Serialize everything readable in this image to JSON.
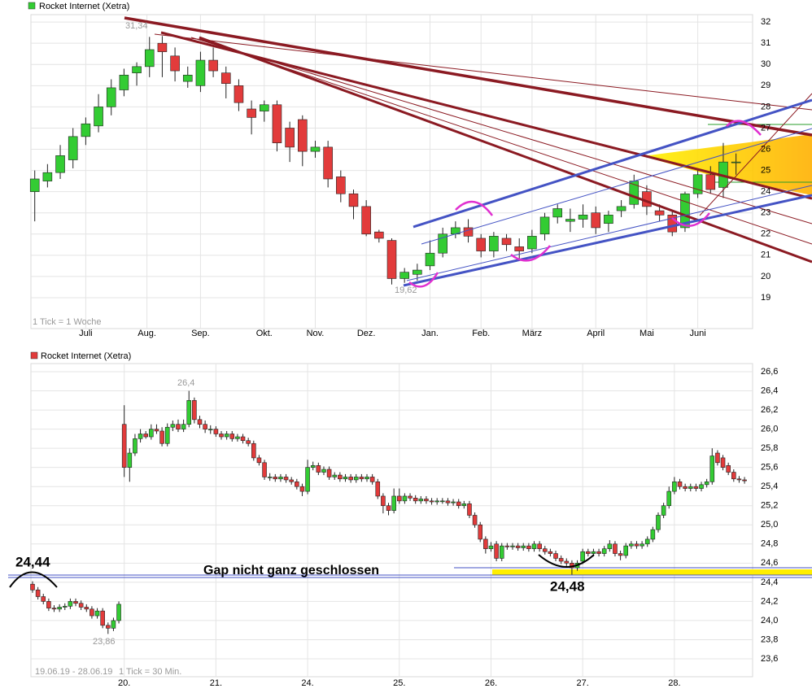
{
  "chart_data": [
    {
      "type": "candlestick",
      "title": "Rocket Internet (Xetra)",
      "note": "1 Tick = 1 Woche",
      "annotations": [
        "31,34",
        "19,62"
      ],
      "up_color": "#33cc33",
      "down_color": "#e23b3b",
      "grid": true,
      "ylim": [
        17.54,
        32.35
      ],
      "yticks": [
        19,
        20,
        21,
        22,
        23,
        24,
        25,
        26,
        27,
        28,
        29,
        30,
        31,
        32
      ],
      "xlim": [
        -0.3,
        56.3
      ],
      "xticks": [
        {
          "value": 4,
          "label": "Juli"
        },
        {
          "value": 8.8,
          "label": "Aug."
        },
        {
          "value": 13,
          "label": "Sep."
        },
        {
          "value": 18,
          "label": "Okt."
        },
        {
          "value": 22,
          "label": "Nov."
        },
        {
          "value": 26,
          "label": "Dez."
        },
        {
          "value": 31,
          "label": "Jan."
        },
        {
          "value": 35,
          "label": "Feb."
        },
        {
          "value": 39,
          "label": "März"
        },
        {
          "value": 44,
          "label": "April"
        },
        {
          "value": 48,
          "label": "Mai"
        },
        {
          "value": 52,
          "label": "Juni"
        }
      ],
      "open": [
        24.0,
        24.5,
        24.9,
        25.5,
        26.6,
        27.1,
        28.0,
        28.8,
        29.6,
        29.9,
        31.0,
        30.4,
        29.2,
        29.0,
        30.2,
        29.6,
        29.0,
        27.9,
        27.8,
        28.1,
        27.0,
        27.4,
        25.9,
        26.1,
        24.7,
        23.9,
        23.3,
        22.1,
        21.7,
        19.9,
        20.1,
        20.5,
        21.1,
        22.0,
        22.3,
        21.8,
        21.2,
        21.8,
        21.4,
        21.3,
        22.0,
        22.8,
        22.6,
        22.7,
        23.0,
        22.5,
        23.1,
        23.4,
        24.0,
        23.1,
        22.9,
        22.3,
        23.9,
        24.8,
        24.2,
        25.4
      ],
      "close": [
        24.6,
        24.9,
        25.7,
        26.6,
        27.2,
        28.0,
        28.9,
        29.5,
        29.9,
        30.7,
        30.6,
        29.7,
        29.5,
        30.2,
        29.7,
        29.1,
        28.2,
        27.5,
        28.1,
        26.3,
        26.1,
        25.9,
        26.1,
        24.6,
        23.9,
        23.3,
        22.0,
        21.8,
        19.9,
        20.2,
        20.3,
        21.1,
        22.0,
        22.3,
        21.9,
        21.2,
        21.9,
        21.5,
        21.2,
        21.9,
        22.8,
        23.2,
        22.7,
        22.9,
        22.3,
        22.9,
        23.3,
        24.5,
        23.3,
        22.9,
        22.1,
        23.9,
        24.8,
        24.1,
        25.4,
        25.4
      ],
      "high": [
        25.0,
        25.3,
        26.2,
        27.0,
        27.5,
        28.6,
        29.3,
        29.8,
        30.1,
        31.3,
        31.34,
        30.8,
        29.9,
        30.6,
        30.8,
        29.9,
        29.3,
        28.3,
        28.3,
        28.3,
        27.3,
        27.6,
        26.4,
        26.4,
        25.0,
        24.1,
        23.6,
        22.2,
        21.8,
        20.4,
        20.6,
        21.7,
        22.3,
        22.6,
        22.7,
        22.0,
        22.1,
        22.0,
        21.8,
        22.2,
        23.0,
        23.4,
        23.2,
        23.4,
        23.3,
        23.1,
        23.6,
        24.8,
        24.3,
        23.4,
        23.1,
        24.0,
        25.0,
        25.2,
        26.3,
        25.8
      ],
      "low": [
        22.6,
        24.2,
        24.6,
        25.1,
        26.2,
        26.8,
        27.6,
        28.5,
        29.0,
        29.4,
        29.4,
        29.2,
        28.9,
        28.7,
        29.4,
        28.4,
        27.8,
        26.7,
        27.3,
        25.9,
        25.4,
        25.2,
        25.6,
        24.2,
        23.5,
        22.7,
        21.9,
        21.6,
        19.62,
        19.7,
        19.8,
        20.3,
        20.9,
        21.8,
        21.6,
        20.9,
        20.9,
        21.2,
        20.8,
        21.1,
        21.7,
        22.5,
        22.1,
        22.3,
        22.0,
        22.1,
        22.8,
        23.2,
        22.9,
        22.6,
        21.9,
        22.1,
        23.7,
        23.9,
        23.7,
        24.8
      ]
    },
    {
      "type": "candlestick",
      "title": "Rocket Internet (Xetra)",
      "note": "1 Tick = 30 Min.",
      "date_range": "19.06.19 - 28.06.19",
      "annotations": [
        "26,4",
        "23,86",
        "24,44",
        "24,48",
        "Gap nicht ganz geschlossen"
      ],
      "up_color": "#33cc33",
      "down_color": "#e23b3b",
      "grid": true,
      "ylim": [
        23.413,
        26.685
      ],
      "yticks": [
        {
          "value": 23.6,
          "label": "23,6"
        },
        {
          "value": 23.8,
          "label": "23,8"
        },
        {
          "value": 24.0,
          "label": "24,0"
        },
        {
          "value": 24.2,
          "label": "24,2"
        },
        {
          "value": 24.4,
          "label": "24,4"
        },
        {
          "value": 24.6,
          "label": "24,6"
        },
        {
          "value": 24.8,
          "label": "24,8"
        },
        {
          "value": 25.0,
          "label": "25,0"
        },
        {
          "value": 25.2,
          "label": "25,2"
        },
        {
          "value": 25.4,
          "label": "25,4"
        },
        {
          "value": 25.6,
          "label": "25,6"
        },
        {
          "value": 25.8,
          "label": "25,8"
        },
        {
          "value": 26.0,
          "label": "26,0"
        },
        {
          "value": 26.2,
          "label": "26,2"
        },
        {
          "value": 26.4,
          "label": "26,4"
        },
        {
          "value": 26.6,
          "label": "26,6"
        }
      ],
      "xlim": [
        -0.3,
        133.5
      ],
      "xticks": [
        {
          "value": 17,
          "label": "20."
        },
        {
          "value": 34,
          "label": "21."
        },
        {
          "value": 51,
          "label": "24."
        },
        {
          "value": 68,
          "label": "25."
        },
        {
          "value": 85,
          "label": "26."
        },
        {
          "value": 102,
          "label": "27."
        },
        {
          "value": 119,
          "label": "28."
        }
      ],
      "open": [
        24.38,
        24.32,
        24.25,
        24.2,
        24.13,
        24.12,
        24.14,
        24.15,
        24.2,
        24.18,
        24.14,
        24.12,
        24.05,
        24.1,
        23.95,
        23.92,
        24.0,
        26.05,
        25.6,
        25.75,
        25.9,
        25.95,
        25.92,
        26.0,
        25.98,
        25.85,
        26.02,
        26.05,
        26.0,
        26.05,
        26.3,
        26.1,
        26.05,
        26.0,
        26.0,
        25.95,
        25.92,
        25.95,
        25.9,
        25.92,
        25.88,
        25.85,
        25.7,
        25.65,
        25.5,
        25.5,
        25.48,
        25.5,
        25.47,
        25.45,
        25.4,
        25.35,
        25.6,
        25.62,
        25.55,
        25.58,
        25.5,
        25.52,
        25.48,
        25.5,
        25.47,
        25.5,
        25.48,
        25.5,
        25.45,
        25.3,
        25.2,
        25.15,
        25.3,
        25.25,
        25.3,
        25.28,
        25.25,
        25.27,
        25.25,
        25.24,
        25.25,
        25.25,
        25.23,
        25.24,
        25.2,
        25.22,
        25.1,
        25.0,
        24.85,
        24.75,
        24.8,
        24.65,
        24.78,
        24.77,
        24.78,
        24.76,
        24.78,
        24.75,
        24.8,
        24.75,
        24.72,
        24.7,
        24.65,
        24.62,
        24.6,
        24.55,
        24.62,
        24.72,
        24.7,
        24.72,
        24.7,
        24.75,
        24.8,
        24.7,
        24.68,
        24.78,
        24.8,
        24.78,
        24.8,
        24.85,
        24.95,
        25.1,
        25.2,
        25.35,
        25.45,
        25.4,
        25.38,
        25.4,
        25.38,
        25.42,
        25.45,
        25.75,
        25.7,
        25.62,
        25.55,
        25.48,
        25.47
      ],
      "close": [
        24.32,
        24.25,
        24.2,
        24.13,
        24.12,
        24.14,
        24.15,
        24.2,
        24.18,
        24.14,
        24.12,
        24.05,
        24.1,
        23.95,
        23.92,
        24.0,
        24.17,
        25.6,
        25.75,
        25.9,
        25.95,
        25.92,
        26.0,
        25.98,
        25.85,
        26.02,
        26.05,
        26.0,
        26.05,
        26.3,
        26.1,
        26.05,
        26.0,
        26.0,
        25.95,
        25.92,
        25.95,
        25.9,
        25.92,
        25.88,
        25.85,
        25.7,
        25.65,
        25.5,
        25.5,
        25.48,
        25.5,
        25.47,
        25.45,
        25.4,
        25.35,
        25.6,
        25.62,
        25.55,
        25.58,
        25.5,
        25.52,
        25.48,
        25.5,
        25.47,
        25.5,
        25.48,
        25.5,
        25.45,
        25.3,
        25.2,
        25.15,
        25.3,
        25.25,
        25.3,
        25.28,
        25.25,
        25.27,
        25.25,
        25.24,
        25.25,
        25.25,
        25.23,
        25.24,
        25.2,
        25.22,
        25.1,
        25.0,
        24.85,
        24.75,
        24.78,
        24.65,
        24.78,
        24.77,
        24.78,
        24.76,
        24.78,
        24.75,
        24.8,
        24.75,
        24.72,
        24.7,
        24.65,
        24.62,
        24.6,
        24.55,
        24.6,
        24.72,
        24.7,
        24.72,
        24.7,
        24.75,
        24.8,
        24.7,
        24.68,
        24.78,
        24.8,
        24.78,
        24.8,
        24.85,
        24.95,
        25.1,
        25.2,
        25.35,
        25.45,
        25.4,
        25.38,
        25.4,
        25.38,
        25.42,
        25.45,
        25.72,
        25.65,
        25.6,
        25.55,
        25.48,
        25.47,
        25.46
      ],
      "high": [
        24.41,
        24.35,
        24.28,
        24.23,
        24.16,
        24.17,
        24.18,
        24.23,
        24.23,
        24.21,
        24.17,
        24.15,
        24.13,
        24.13,
        23.98,
        24.03,
        24.2,
        26.25,
        25.8,
        25.95,
        26.0,
        25.98,
        26.05,
        26.05,
        26.02,
        26.06,
        26.09,
        26.1,
        26.1,
        26.4,
        26.33,
        26.14,
        26.09,
        26.04,
        26.03,
        25.98,
        25.98,
        25.98,
        25.95,
        25.95,
        25.91,
        25.88,
        25.73,
        25.68,
        25.54,
        25.53,
        25.53,
        25.53,
        25.5,
        25.48,
        25.43,
        25.68,
        25.66,
        25.65,
        25.61,
        25.61,
        25.55,
        25.55,
        25.53,
        25.53,
        25.53,
        25.53,
        25.53,
        25.53,
        25.48,
        25.33,
        25.23,
        25.38,
        25.38,
        25.33,
        25.33,
        25.31,
        25.3,
        25.3,
        25.28,
        25.28,
        25.28,
        25.28,
        25.27,
        25.27,
        25.25,
        25.25,
        25.13,
        25.03,
        24.88,
        24.82,
        24.83,
        24.81,
        24.81,
        24.81,
        24.81,
        24.81,
        24.81,
        24.83,
        24.83,
        24.78,
        24.75,
        24.73,
        24.68,
        24.65,
        24.63,
        24.63,
        24.75,
        24.75,
        24.75,
        24.75,
        24.78,
        24.84,
        24.83,
        24.73,
        24.81,
        24.83,
        24.83,
        24.83,
        24.88,
        24.98,
        25.13,
        25.23,
        25.4,
        25.5,
        25.48,
        25.43,
        25.43,
        25.43,
        25.45,
        25.48,
        25.8,
        25.78,
        25.73,
        25.65,
        25.58,
        25.51,
        25.5
      ],
      "low": [
        24.29,
        24.22,
        24.17,
        24.1,
        24.09,
        24.09,
        24.11,
        24.12,
        24.15,
        24.11,
        24.09,
        24.02,
        24.02,
        23.92,
        23.86,
        23.89,
        23.97,
        25.5,
        25.45,
        25.72,
        25.86,
        25.9,
        25.89,
        25.95,
        25.82,
        25.82,
        25.98,
        25.97,
        25.97,
        26.02,
        26.06,
        26.01,
        25.96,
        25.95,
        25.92,
        25.89,
        25.89,
        25.87,
        25.87,
        25.85,
        25.82,
        25.67,
        25.62,
        25.47,
        25.46,
        25.45,
        25.45,
        25.44,
        25.42,
        25.37,
        25.3,
        25.32,
        25.57,
        25.52,
        25.52,
        25.47,
        25.47,
        25.45,
        25.45,
        25.44,
        25.44,
        25.45,
        25.45,
        25.42,
        25.27,
        25.12,
        25.1,
        25.12,
        25.22,
        25.22,
        25.25,
        25.22,
        25.22,
        25.22,
        25.21,
        25.21,
        25.22,
        25.2,
        25.2,
        25.17,
        25.17,
        25.07,
        24.97,
        24.82,
        24.7,
        24.72,
        24.62,
        24.62,
        24.74,
        24.74,
        24.73,
        24.73,
        24.72,
        24.72,
        24.72,
        24.69,
        24.67,
        24.62,
        24.59,
        24.57,
        24.48,
        24.52,
        24.59,
        24.67,
        24.67,
        24.67,
        24.67,
        24.72,
        24.67,
        24.63,
        24.65,
        24.75,
        24.75,
        24.75,
        24.77,
        24.82,
        24.92,
        25.07,
        25.17,
        25.32,
        25.37,
        25.35,
        25.35,
        25.35,
        25.35,
        25.39,
        25.42,
        25.62,
        25.57,
        25.52,
        25.45,
        25.44,
        25.43
      ]
    }
  ]
}
